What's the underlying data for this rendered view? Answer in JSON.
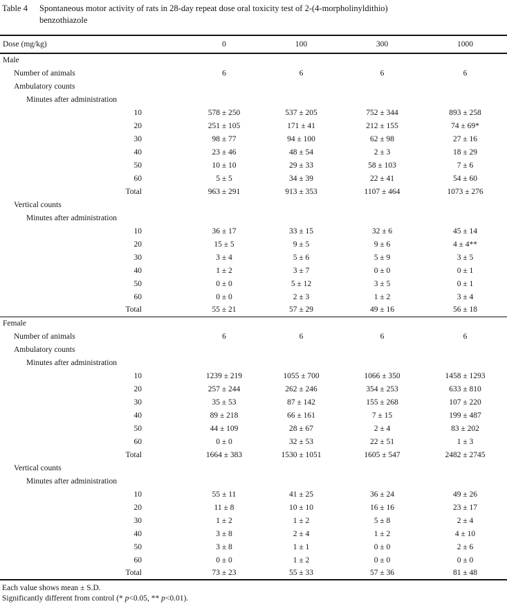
{
  "title": {
    "label": "Table 4",
    "line1": "Spontaneous motor activity of rats in 28-day repeat dose oral toxicity test of 2-(4-morpholinyldithio)",
    "line2": "benzothiazole"
  },
  "header": {
    "label": "Dose (mg/kg)",
    "doses": [
      "0",
      "100",
      "300",
      "1000"
    ]
  },
  "row_labels": {
    "number_of_animals": "Number of animals",
    "minutes_after_administration": "Minutes after administration"
  },
  "sections": [
    {
      "sex": "Male",
      "number_of_animals": [
        "6",
        "6",
        "6",
        "6"
      ],
      "blocks": [
        {
          "name": "Ambulatory counts",
          "rows": [
            {
              "time": "10",
              "values": [
                "578 ± 250",
                "537 ± 205",
                "752 ± 344",
                "893 ± 258"
              ]
            },
            {
              "time": "20",
              "values": [
                "251 ± 105",
                "171 ± 41",
                "212 ± 155",
                "74 ± 69*"
              ]
            },
            {
              "time": "30",
              "values": [
                "98 ± 77",
                "94 ± 100",
                "62 ± 98",
                "27 ± 16"
              ]
            },
            {
              "time": "40",
              "values": [
                "23 ± 46",
                "48 ± 54",
                "2 ± 3",
                "18 ± 29"
              ]
            },
            {
              "time": "50",
              "values": [
                "10 ± 10",
                "29 ± 33",
                "58 ± 103",
                "7 ± 6"
              ]
            },
            {
              "time": "60",
              "values": [
                "5 ± 5",
                "34 ± 39",
                "22 ± 41",
                "54 ± 60"
              ]
            },
            {
              "time": "Total",
              "values": [
                "963 ± 291",
                "913 ± 353",
                "1107 ± 464",
                "1073 ± 276"
              ]
            }
          ]
        },
        {
          "name": "Vertical counts",
          "rows": [
            {
              "time": "10",
              "values": [
                "36 ± 17",
                "33 ± 15",
                "32 ± 6",
                "45 ± 14"
              ]
            },
            {
              "time": "20",
              "values": [
                "15 ± 5",
                "9 ± 5",
                "9 ± 6",
                "4 ± 4**"
              ]
            },
            {
              "time": "30",
              "values": [
                "3 ± 4",
                "5 ± 6",
                "5 ± 9",
                "3 ± 5"
              ]
            },
            {
              "time": "40",
              "values": [
                "1 ± 2",
                "3 ± 7",
                "0 ± 0",
                "0 ± 1"
              ]
            },
            {
              "time": "50",
              "values": [
                "0 ± 0",
                "5 ± 12",
                "3 ± 5",
                "0 ± 1"
              ]
            },
            {
              "time": "60",
              "values": [
                "0 ± 0",
                "2 ± 3",
                "1 ± 2",
                "3 ± 4"
              ]
            },
            {
              "time": "Total",
              "values": [
                "55 ± 21",
                "57 ± 29",
                "49 ± 16",
                "56 ± 18"
              ]
            }
          ]
        }
      ]
    },
    {
      "sex": "Female",
      "number_of_animals": [
        "6",
        "6",
        "6",
        "6"
      ],
      "blocks": [
        {
          "name": "Ambulatory counts",
          "rows": [
            {
              "time": "10",
              "values": [
                "1239 ± 219",
                "1055 ± 700",
                "1066 ± 350",
                "1458 ± 1293"
              ]
            },
            {
              "time": "20",
              "values": [
                "257 ± 244",
                "262 ± 246",
                "354 ± 253",
                "633 ± 810"
              ]
            },
            {
              "time": "30",
              "values": [
                "35 ± 53",
                "87 ± 142",
                "155 ± 268",
                "107 ± 220"
              ]
            },
            {
              "time": "40",
              "values": [
                "89 ± 218",
                "66 ± 161",
                "7 ± 15",
                "199 ± 487"
              ]
            },
            {
              "time": "50",
              "values": [
                "44 ± 109",
                "28 ± 67",
                "2 ± 4",
                "83 ± 202"
              ]
            },
            {
              "time": "60",
              "values": [
                "0 ± 0",
                "32 ± 53",
                "22 ± 51",
                "1 ± 3"
              ]
            },
            {
              "time": "Total",
              "values": [
                "1664 ± 383",
                "1530 ± 1051",
                "1605 ± 547",
                "2482 ± 2745"
              ]
            }
          ]
        },
        {
          "name": "Vertical counts",
          "rows": [
            {
              "time": "10",
              "values": [
                "55 ± 11",
                "41 ± 25",
                "36 ± 24",
                "49 ± 26"
              ]
            },
            {
              "time": "20",
              "values": [
                "11 ± 8",
                "10 ± 10",
                "16 ± 16",
                "23 ± 17"
              ]
            },
            {
              "time": "30",
              "values": [
                "1 ± 2",
                "1 ± 2",
                "5 ± 8",
                "2 ± 4"
              ]
            },
            {
              "time": "40",
              "values": [
                "3 ± 8",
                "2 ± 4",
                "1 ± 2",
                "4 ± 10"
              ]
            },
            {
              "time": "50",
              "values": [
                "3 ± 8",
                "1 ± 1",
                "0 ± 0",
                "2 ± 6"
              ]
            },
            {
              "time": "60",
              "values": [
                "0 ± 0",
                "1 ± 2",
                "0 ± 0",
                "0 ± 0"
              ]
            },
            {
              "time": "Total",
              "values": [
                "73 ± 23",
                "55 ± 33",
                "57 ± 36",
                "81 ± 48"
              ]
            }
          ]
        }
      ]
    }
  ],
  "footnotes": {
    "line1": "Each value shows mean ± S.D.",
    "line2_parts": [
      "Significantly different from control (* ",
      "p",
      "<0.05, ** ",
      "p",
      "<0.01)."
    ]
  }
}
